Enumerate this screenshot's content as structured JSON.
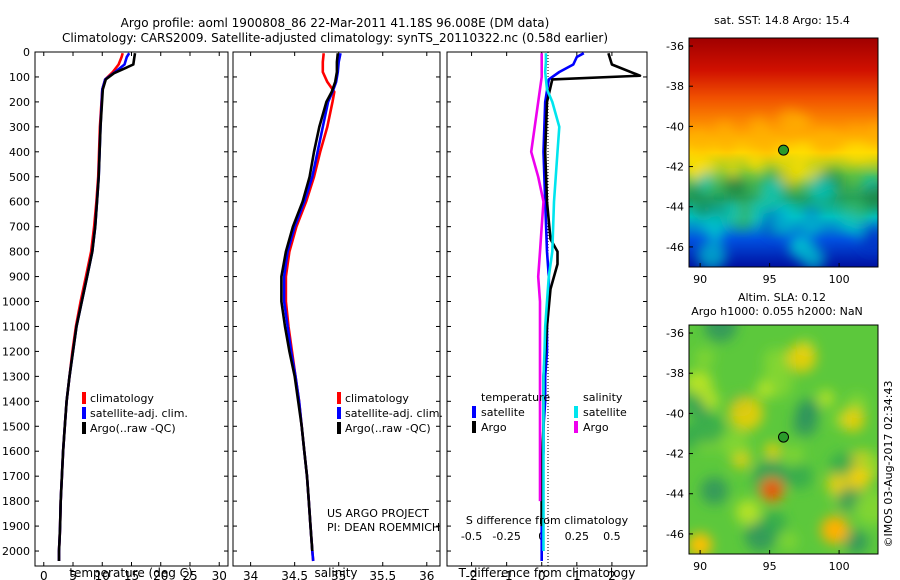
{
  "header": {
    "line1": "Argo profile: aoml 1900808_86 22-Mar-2011 41.18S 96.008E (DM data)",
    "line2": "Climatology: CARS2009. Satellite-adjusted climatology: synTS_20110322.nc (0.58d earlier)"
  },
  "colors": {
    "climatology": "#ff0000",
    "satellite": "#0000ff",
    "argo": "#000000",
    "cyan": "#00e5ee",
    "magenta": "#ee00ee"
  },
  "chart_data": [
    {
      "type": "line",
      "xlabel": "temperature (deg C)",
      "xticks": [
        0,
        5,
        10,
        15,
        20,
        25,
        30
      ],
      "xlim": [
        -1.5,
        31.5
      ],
      "ylim": [
        0,
        2060
      ],
      "yticks": [
        0,
        100,
        200,
        300,
        400,
        500,
        600,
        700,
        800,
        900,
        1000,
        1100,
        1200,
        1300,
        1400,
        1500,
        1600,
        1700,
        1800,
        1900,
        2000
      ],
      "legend": [
        "climatology",
        "satellite-adj. clim.",
        "Argo(..raw -QC)"
      ],
      "series": [
        {
          "name": "climatology",
          "color": "#ff0000",
          "x": [
            13.5,
            13.3,
            12.8,
            11.8,
            10.5,
            10.0,
            9.6,
            9.3,
            9.0,
            8.6,
            8.1,
            7.2,
            6.3,
            5.5,
            4.9,
            4.4,
            3.9,
            3.6,
            3.3,
            3.1,
            2.9,
            2.8,
            2.7,
            2.6,
            2.6
          ],
          "y": [
            5,
            20,
            50,
            80,
            110,
            150,
            300,
            500,
            600,
            700,
            800,
            900,
            1000,
            1100,
            1200,
            1300,
            1400,
            1500,
            1600,
            1700,
            1800,
            1900,
            1950,
            2000,
            2040
          ]
        },
        {
          "name": "satellite-adj. clim.",
          "color": "#0000ff",
          "x": [
            14.6,
            14.2,
            13.8,
            12.2,
            10.5,
            10.0,
            9.7,
            9.4,
            9.1,
            8.8,
            8.3,
            7.4,
            6.5,
            5.6,
            5.0,
            4.4,
            3.9,
            3.6,
            3.3,
            3.1,
            2.9,
            2.8,
            2.7,
            2.6,
            2.6
          ],
          "y": [
            5,
            20,
            50,
            80,
            110,
            150,
            300,
            500,
            600,
            700,
            800,
            900,
            1000,
            1100,
            1200,
            1300,
            1400,
            1500,
            1600,
            1700,
            1800,
            1900,
            1950,
            2000,
            2040
          ]
        },
        {
          "name": "Argo(..raw -QC)",
          "color": "#000000",
          "x": [
            15.6,
            15.5,
            15.3,
            12.0,
            10.6,
            10.1,
            9.7,
            9.4,
            9.1,
            8.8,
            8.3,
            7.4,
            6.5,
            5.6,
            5.0,
            4.4,
            3.9,
            3.6,
            3.3,
            3.1,
            2.9,
            2.8,
            2.7,
            2.6,
            2.6
          ],
          "y": [
            5,
            20,
            50,
            85,
            110,
            150,
            300,
            500,
            600,
            700,
            800,
            900,
            1000,
            1100,
            1200,
            1300,
            1400,
            1500,
            1600,
            1700,
            1800,
            1900,
            1950,
            2000,
            2040
          ]
        }
      ]
    },
    {
      "type": "line",
      "xlabel": "salinity",
      "xticks": [
        34,
        34.5,
        35,
        35.5,
        36
      ],
      "xlim": [
        33.8,
        36.15
      ],
      "ylim": [
        0,
        2060
      ],
      "legend": [
        "climatology",
        "satellite-adj. clim.",
        "Argo(..raw -QC)"
      ],
      "annotation1": "US ARGO PROJECT",
      "annotation2": "PI: DEAN ROEMMICH",
      "series": [
        {
          "name": "climatology",
          "color": "#ff0000",
          "x": [
            34.83,
            34.82,
            34.82,
            34.87,
            34.95,
            34.93,
            34.87,
            34.79,
            34.72,
            34.63,
            34.52,
            34.44,
            34.4,
            34.4,
            34.43,
            34.47,
            34.51,
            34.55,
            34.58,
            34.61,
            34.64,
            34.66,
            34.68,
            34.7,
            34.71
          ],
          "y": [
            5,
            40,
            80,
            120,
            160,
            200,
            300,
            400,
            500,
            600,
            700,
            800,
            900,
            1000,
            1100,
            1200,
            1300,
            1400,
            1500,
            1600,
            1700,
            1800,
            1900,
            2000,
            2040
          ]
        },
        {
          "name": "satellite-adj. clim.",
          "color": "#0000ff",
          "x": [
            35.02,
            35.0,
            34.99,
            34.97,
            34.93,
            34.88,
            34.82,
            34.76,
            34.7,
            34.61,
            34.5,
            34.42,
            34.38,
            34.38,
            34.42,
            34.46,
            34.51,
            34.55,
            34.58,
            34.61,
            34.64,
            34.66,
            34.68,
            34.7,
            34.71
          ],
          "y": [
            5,
            40,
            80,
            120,
            160,
            200,
            300,
            400,
            500,
            600,
            700,
            800,
            900,
            1000,
            1100,
            1200,
            1300,
            1400,
            1500,
            1600,
            1700,
            1800,
            1900,
            2000,
            2040
          ]
        },
        {
          "name": "Argo(..raw -QC)",
          "color": "#000000",
          "x": [
            34.99,
            34.98,
            34.98,
            34.96,
            34.92,
            34.86,
            34.78,
            34.72,
            34.67,
            34.59,
            34.48,
            34.4,
            34.35,
            34.35,
            34.39,
            34.44,
            34.5,
            34.54,
            34.58,
            34.61,
            34.64,
            34.66,
            34.68,
            34.7
          ],
          "y": [
            5,
            40,
            80,
            120,
            160,
            200,
            300,
            400,
            500,
            600,
            700,
            800,
            900,
            1000,
            1100,
            1200,
            1300,
            1400,
            1500,
            1600,
            1700,
            1800,
            1900,
            2000
          ]
        }
      ]
    },
    {
      "type": "line",
      "xlabel": "T difference from climatology",
      "xlabel_top": "S difference from climatology",
      "xticks": [
        -2,
        -1,
        0,
        1,
        2
      ],
      "xticks_top": [
        "-0.5",
        "-0.25",
        "0",
        "0.25",
        "0.5"
      ],
      "xlim": [
        -2.7,
        3.0
      ],
      "ylim": [
        0,
        2060
      ],
      "legend_title_t": "temperature",
      "legend_title_s": "salinity",
      "legend_t": [
        "satellite",
        "Argo"
      ],
      "legend_s": [
        "satellite",
        "Argo"
      ],
      "series": [
        {
          "name": "temperature satellite",
          "color": "#0000ff",
          "x": [
            1.2,
            1.0,
            0.9,
            0.5,
            0.2,
            0.1,
            0.05,
            0.1,
            0.15,
            0.2,
            0.2,
            0.15,
            0.15,
            0.1,
            0.1,
            0.05,
            0.05,
            0.0,
            0.0,
            0.0,
            0.0,
            0.0
          ],
          "y": [
            5,
            20,
            50,
            80,
            110,
            200,
            400,
            600,
            800,
            900,
            1000,
            1100,
            1200,
            1300,
            1400,
            1500,
            1600,
            1700,
            1800,
            1900,
            2000,
            2040
          ]
        },
        {
          "name": "temperature Argo",
          "color": "#000000",
          "x": [
            1.9,
            2.0,
            2.8,
            0.3,
            0.15,
            0.1,
            0.15,
            0.25,
            0.45,
            0.45,
            0.25,
            0.15,
            0.1,
            0.05,
            0.05,
            0.05,
            0.02,
            0.0,
            0.0,
            0.0
          ],
          "y": [
            5,
            50,
            95,
            110,
            200,
            400,
            600,
            750,
            800,
            850,
            950,
            1100,
            1200,
            1300,
            1400,
            1500,
            1600,
            1700,
            1800,
            1900
          ]
        },
        {
          "name": "salinity satellite",
          "color": "#00e5ee",
          "x": [
            0.12,
            0.12,
            0.1,
            0.15,
            0.3,
            0.5,
            0.45,
            0.35,
            0.3,
            0.2,
            0.15,
            0.1,
            0.08,
            0.05,
            0.05,
            0.05,
            0.05,
            0.05,
            0.05,
            0.05,
            0.05
          ],
          "y": [
            5,
            40,
            80,
            150,
            200,
            300,
            400,
            600,
            800,
            900,
            1000,
            1100,
            1200,
            1300,
            1400,
            1500,
            1600,
            1700,
            1800,
            1900,
            2000
          ]
        },
        {
          "name": "salinity Argo",
          "color": "#ee00ee",
          "x": [
            0.0,
            0.0,
            -0.1,
            -0.2,
            -0.3,
            -0.1,
            0.05,
            0.0,
            -0.05,
            -0.1,
            -0.05,
            -0.05,
            -0.05,
            -0.05,
            -0.05
          ],
          "y": [
            5,
            100,
            200,
            300,
            400,
            500,
            600,
            700,
            800,
            900,
            1000,
            1200,
            1400,
            1600,
            1800
          ]
        }
      ]
    }
  ],
  "map1": {
    "title": "sat. SST: 14.8 Argo: 15.4",
    "yticks": [
      "-36",
      "-38",
      "-40",
      "-42",
      "-44",
      "-46"
    ],
    "xticks": [
      "90",
      "95",
      "100"
    ],
    "lon": 96.0,
    "lat": -41.18
  },
  "map2": {
    "title1": "Altim. SLA: 0.12",
    "title2": "Argo h1000: 0.055 h2000: NaN",
    "yticks": [
      "-36",
      "-38",
      "-40",
      "-42",
      "-44",
      "-46"
    ],
    "xticks": [
      "90",
      "95",
      "100"
    ],
    "lon": 96.0,
    "lat": -41.18
  },
  "credit": "©IMOS 03-Aug-2017 02:34:43"
}
